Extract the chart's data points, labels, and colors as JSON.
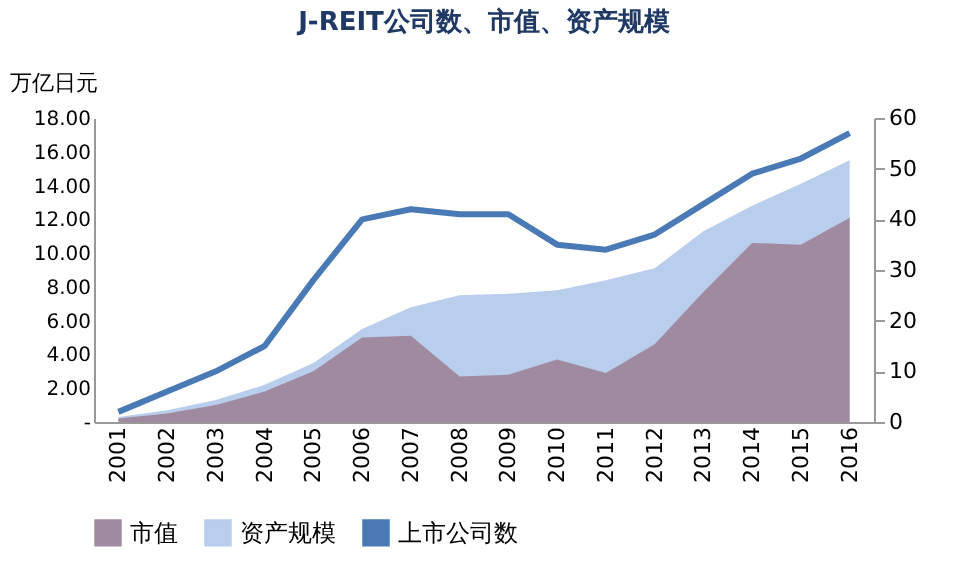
{
  "chart_data": {
    "type": "area",
    "title": "J-REIT公司数、市值、资产规模",
    "ylabel": "万亿日元",
    "categories": [
      "2001",
      "2002",
      "2003",
      "2004",
      "2005",
      "2006",
      "2007",
      "2008",
      "2009",
      "2010",
      "2011",
      "2012",
      "2013",
      "2014",
      "2015",
      "2016"
    ],
    "series": [
      {
        "name": "市值",
        "color": "#a08aa0",
        "values": [
          0.2,
          0.5,
          1.0,
          1.8,
          3.0,
          5.0,
          5.1,
          2.7,
          2.8,
          3.7,
          2.9,
          4.6,
          7.7,
          10.6,
          10.5,
          12.1
        ]
      },
      {
        "name": "资产规模",
        "color": "#b9cdec",
        "values": [
          0.3,
          0.7,
          1.3,
          2.2,
          3.5,
          5.5,
          6.8,
          7.5,
          7.6,
          7.8,
          8.4,
          9.1,
          11.3,
          12.8,
          14.1,
          15.5
        ]
      },
      {
        "name": "上市公司数",
        "type": "line",
        "axis": "y2",
        "color": "#4a7ab5",
        "values": [
          2,
          6,
          10,
          15,
          28,
          40,
          42,
          41,
          41,
          35,
          34,
          37,
          43,
          49,
          52,
          57
        ]
      }
    ],
    "ylim": [
      0,
      18
    ],
    "yticks": [
      {
        "value": 0,
        "label": "-"
      },
      {
        "value": 2,
        "label": "2.00"
      },
      {
        "value": 4,
        "label": "4.00"
      },
      {
        "value": 6,
        "label": "6.00"
      },
      {
        "value": 8,
        "label": "8.00"
      },
      {
        "value": 10,
        "label": "10.00"
      },
      {
        "value": 12,
        "label": "12.00"
      },
      {
        "value": 14,
        "label": "14.00"
      },
      {
        "value": 16,
        "label": "16.00"
      },
      {
        "value": 18,
        "label": "18.00"
      }
    ],
    "y2lim": [
      0,
      60
    ],
    "y2ticks": [
      0,
      10,
      20,
      30,
      40,
      50,
      60
    ],
    "grid": false,
    "legend": "bottom",
    "marker": "none",
    "line_style": "solid"
  }
}
